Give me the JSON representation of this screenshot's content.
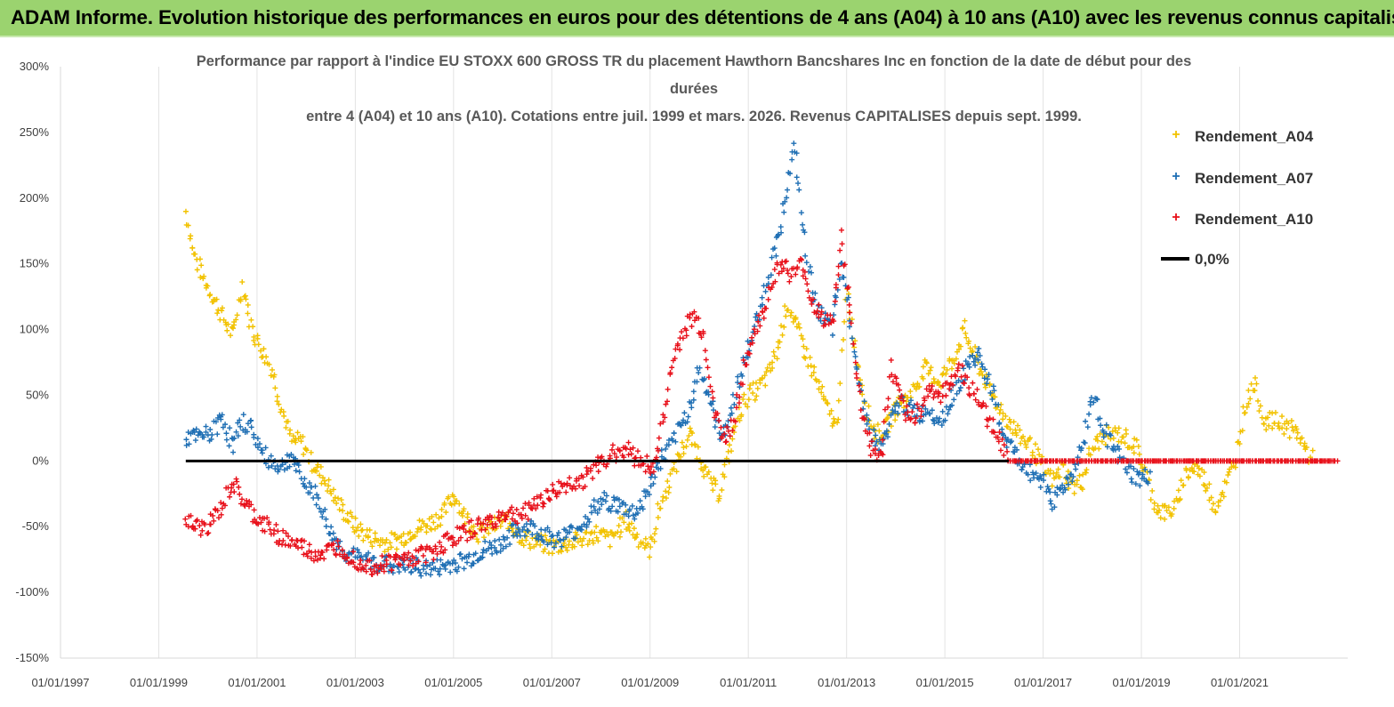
{
  "header": {
    "title": "ADAM Informe. Evolution historique des performances en euros pour des détentions de 4 ans (A04) à 10 ans (A10) avec les revenus connus capitalisés"
  },
  "chart_data": {
    "type": "scatter",
    "title_lines": [
      "Performance par rapport à l'indice EU STOXX 600 GROSS TR  du placement Hawthorn Bancshares Inc en fonction de la date de début pour des",
      "durées",
      "entre 4 (A04) et 10 ans (A10). Cotations entre juil. 1999 et mars. 2026. Revenus CAPITALISES depuis sept. 1999."
    ],
    "x_ticks": [
      "01/01/1997",
      "01/01/1999",
      "01/01/2001",
      "01/01/2003",
      "01/01/2005",
      "01/01/2007",
      "01/01/2009",
      "01/01/2011",
      "01/01/2013",
      "01/01/2015",
      "01/01/2017",
      "01/01/2019",
      "01/01/2021"
    ],
    "xlim": [
      1997.0,
      2023.2
    ],
    "y_ticks": [
      "300%",
      "250%",
      "200%",
      "150%",
      "100%",
      "50%",
      "0%",
      "-50%",
      "-100%",
      "-150%"
    ],
    "ylim": [
      -150,
      300
    ],
    "grid": "vertical",
    "legend_position": "top-right",
    "legend": [
      {
        "label": "Rendement_A04",
        "color": "#f2c200",
        "marker": "+"
      },
      {
        "label": "Rendement_A07",
        "color": "#1f6fb4",
        "marker": "+"
      },
      {
        "label": "Rendement_A10",
        "color": "#e8101a",
        "marker": "+"
      },
      {
        "label": "0,0%",
        "color": "#000000",
        "marker": "line"
      }
    ],
    "series": [
      {
        "name": "Rendement_A04",
        "color": "#f2c200",
        "points": [
          [
            1999.55,
            190
          ],
          [
            1999.7,
            160
          ],
          [
            1999.9,
            140
          ],
          [
            2000.1,
            125
          ],
          [
            2000.3,
            110
          ],
          [
            2000.5,
            95
          ],
          [
            2000.7,
            135
          ],
          [
            2000.9,
            100
          ],
          [
            2001.1,
            85
          ],
          [
            2001.3,
            70
          ],
          [
            2001.5,
            40
          ],
          [
            2001.7,
            15
          ],
          [
            2001.9,
            15
          ],
          [
            2002.1,
            0
          ],
          [
            2002.4,
            -15
          ],
          [
            2002.7,
            -35
          ],
          [
            2003.0,
            -50
          ],
          [
            2003.3,
            -58
          ],
          [
            2003.6,
            -62
          ],
          [
            2003.9,
            -60
          ],
          [
            2004.2,
            -52
          ],
          [
            2004.5,
            -48
          ],
          [
            2004.8,
            -40
          ],
          [
            2005.0,
            -25
          ],
          [
            2005.2,
            -40
          ],
          [
            2005.5,
            -55
          ],
          [
            2005.8,
            -50
          ],
          [
            2006.1,
            -45
          ],
          [
            2006.4,
            -58
          ],
          [
            2006.7,
            -62
          ],
          [
            2007.0,
            -65
          ],
          [
            2007.3,
            -63
          ],
          [
            2007.6,
            -60
          ],
          [
            2007.9,
            -55
          ],
          [
            2008.2,
            -60
          ],
          [
            2008.5,
            -45
          ],
          [
            2008.8,
            -60
          ],
          [
            2009.0,
            -68
          ],
          [
            2009.2,
            -35
          ],
          [
            2009.4,
            -15
          ],
          [
            2009.6,
            5
          ],
          [
            2009.8,
            20
          ],
          [
            2010.0,
            5
          ],
          [
            2010.2,
            -15
          ],
          [
            2010.4,
            -25
          ],
          [
            2010.6,
            5
          ],
          [
            2010.8,
            35
          ],
          [
            2011.0,
            50
          ],
          [
            2011.2,
            55
          ],
          [
            2011.4,
            65
          ],
          [
            2011.6,
            85
          ],
          [
            2011.8,
            120
          ],
          [
            2012.0,
            100
          ],
          [
            2012.2,
            80
          ],
          [
            2012.4,
            60
          ],
          [
            2012.6,
            40
          ],
          [
            2012.8,
            25
          ],
          [
            2013.0,
            130
          ],
          [
            2013.2,
            80
          ],
          [
            2013.4,
            40
          ],
          [
            2013.6,
            20
          ],
          [
            2013.8,
            25
          ],
          [
            2014.0,
            40
          ],
          [
            2014.3,
            50
          ],
          [
            2014.6,
            70
          ],
          [
            2014.9,
            60
          ],
          [
            2015.2,
            80
          ],
          [
            2015.4,
            100
          ],
          [
            2015.6,
            80
          ],
          [
            2015.9,
            55
          ],
          [
            2016.2,
            35
          ],
          [
            2016.5,
            20
          ],
          [
            2016.8,
            10
          ],
          [
            2017.0,
            -5
          ],
          [
            2017.2,
            -15
          ],
          [
            2017.4,
            -5
          ],
          [
            2017.6,
            -20
          ],
          [
            2017.8,
            -15
          ],
          [
            2018.0,
            10
          ],
          [
            2018.3,
            20
          ],
          [
            2018.6,
            20
          ],
          [
            2018.9,
            10
          ],
          [
            2019.1,
            -10
          ],
          [
            2019.3,
            -35
          ],
          [
            2019.5,
            -40
          ],
          [
            2019.7,
            -35
          ],
          [
            2019.9,
            -10
          ],
          [
            2020.1,
            -5
          ],
          [
            2020.3,
            -15
          ],
          [
            2020.5,
            -35
          ],
          [
            2020.7,
            -20
          ],
          [
            2020.9,
            0
          ],
          [
            2021.1,
            40
          ],
          [
            2021.3,
            60
          ],
          [
            2021.5,
            30
          ],
          [
            2021.8,
            30
          ],
          [
            2022.0,
            25
          ],
          [
            2022.2,
            20
          ],
          [
            2022.4,
            5
          ],
          [
            2022.5,
            0
          ]
        ]
      },
      {
        "name": "Rendement_A07",
        "color": "#1f6fb4",
        "points": [
          [
            1999.55,
            18
          ],
          [
            1999.8,
            18
          ],
          [
            2000.1,
            22
          ],
          [
            2000.3,
            35
          ],
          [
            2000.5,
            10
          ],
          [
            2000.7,
            30
          ],
          [
            2000.9,
            25
          ],
          [
            2001.1,
            5
          ],
          [
            2001.3,
            0
          ],
          [
            2001.5,
            -5
          ],
          [
            2001.7,
            5
          ],
          [
            2001.9,
            -15
          ],
          [
            2002.1,
            -20
          ],
          [
            2002.3,
            -35
          ],
          [
            2002.5,
            -55
          ],
          [
            2002.8,
            -70
          ],
          [
            2003.1,
            -75
          ],
          [
            2003.4,
            -77
          ],
          [
            2003.8,
            -80
          ],
          [
            2004.2,
            -80
          ],
          [
            2004.6,
            -82
          ],
          [
            2005.0,
            -78
          ],
          [
            2005.3,
            -75
          ],
          [
            2005.6,
            -68
          ],
          [
            2005.9,
            -65
          ],
          [
            2006.2,
            -55
          ],
          [
            2006.5,
            -50
          ],
          [
            2006.8,
            -55
          ],
          [
            2007.1,
            -60
          ],
          [
            2007.4,
            -55
          ],
          [
            2007.7,
            -45
          ],
          [
            2007.9,
            -35
          ],
          [
            2008.1,
            -30
          ],
          [
            2008.4,
            -35
          ],
          [
            2008.7,
            -40
          ],
          [
            2009.0,
            -20
          ],
          [
            2009.2,
            0
          ],
          [
            2009.4,
            10
          ],
          [
            2009.6,
            25
          ],
          [
            2009.8,
            40
          ],
          [
            2010.0,
            70
          ],
          [
            2010.2,
            50
          ],
          [
            2010.4,
            20
          ],
          [
            2010.6,
            30
          ],
          [
            2010.8,
            60
          ],
          [
            2011.0,
            85
          ],
          [
            2011.2,
            110
          ],
          [
            2011.4,
            140
          ],
          [
            2011.6,
            170
          ],
          [
            2011.8,
            210
          ],
          [
            2011.95,
            240
          ],
          [
            2012.1,
            180
          ],
          [
            2012.3,
            130
          ],
          [
            2012.5,
            110
          ],
          [
            2012.7,
            100
          ],
          [
            2012.9,
            150
          ],
          [
            2013.1,
            100
          ],
          [
            2013.3,
            50
          ],
          [
            2013.5,
            20
          ],
          [
            2013.7,
            10
          ],
          [
            2013.9,
            30
          ],
          [
            2014.1,
            45
          ],
          [
            2014.3,
            40
          ],
          [
            2014.5,
            35
          ],
          [
            2014.7,
            40
          ],
          [
            2014.9,
            30
          ],
          [
            2015.1,
            45
          ],
          [
            2015.3,
            60
          ],
          [
            2015.5,
            75
          ],
          [
            2015.7,
            80
          ],
          [
            2015.9,
            60
          ],
          [
            2016.2,
            20
          ],
          [
            2016.5,
            0
          ],
          [
            2016.8,
            -10
          ],
          [
            2017.0,
            -15
          ],
          [
            2017.2,
            -30
          ],
          [
            2017.4,
            -20
          ],
          [
            2017.6,
            -10
          ],
          [
            2017.8,
            10
          ],
          [
            2018.0,
            50
          ],
          [
            2018.2,
            30
          ],
          [
            2018.4,
            10
          ],
          [
            2018.6,
            0
          ],
          [
            2018.8,
            -10
          ],
          [
            2019.0,
            -15
          ],
          [
            2019.2,
            -10
          ]
        ]
      },
      {
        "name": "Rendement_A10",
        "color": "#e8101a",
        "points": [
          [
            1999.55,
            -45
          ],
          [
            1999.7,
            -50
          ],
          [
            1999.9,
            -52
          ],
          [
            2000.1,
            -45
          ],
          [
            2000.3,
            -35
          ],
          [
            2000.5,
            -15
          ],
          [
            2000.7,
            -30
          ],
          [
            2000.9,
            -40
          ],
          [
            2001.1,
            -48
          ],
          [
            2001.3,
            -52
          ],
          [
            2001.5,
            -58
          ],
          [
            2001.7,
            -62
          ],
          [
            2001.9,
            -65
          ],
          [
            2002.1,
            -70
          ],
          [
            2002.4,
            -70
          ],
          [
            2002.7,
            -65
          ],
          [
            2003.0,
            -75
          ],
          [
            2003.3,
            -80
          ],
          [
            2003.6,
            -78
          ],
          [
            2004.0,
            -75
          ],
          [
            2004.3,
            -72
          ],
          [
            2004.6,
            -68
          ],
          [
            2004.9,
            -60
          ],
          [
            2005.2,
            -55
          ],
          [
            2005.5,
            -50
          ],
          [
            2005.8,
            -45
          ],
          [
            2006.1,
            -40
          ],
          [
            2006.4,
            -42
          ],
          [
            2006.7,
            -30
          ],
          [
            2007.0,
            -25
          ],
          [
            2007.3,
            -18
          ],
          [
            2007.6,
            -15
          ],
          [
            2007.9,
            -5
          ],
          [
            2008.2,
            5
          ],
          [
            2008.5,
            10
          ],
          [
            2008.8,
            0
          ],
          [
            2009.1,
            -5
          ],
          [
            2009.3,
            40
          ],
          [
            2009.5,
            80
          ],
          [
            2009.7,
            100
          ],
          [
            2009.9,
            110
          ],
          [
            2010.1,
            95
          ],
          [
            2010.3,
            40
          ],
          [
            2010.5,
            15
          ],
          [
            2010.7,
            30
          ],
          [
            2010.9,
            70
          ],
          [
            2011.1,
            95
          ],
          [
            2011.3,
            110
          ],
          [
            2011.5,
            140
          ],
          [
            2011.7,
            150
          ],
          [
            2011.9,
            140
          ],
          [
            2012.1,
            150
          ],
          [
            2012.3,
            120
          ],
          [
            2012.5,
            110
          ],
          [
            2012.7,
            105
          ],
          [
            2012.9,
            170
          ],
          [
            2013.1,
            100
          ],
          [
            2013.3,
            40
          ],
          [
            2013.5,
            10
          ],
          [
            2013.7,
            0
          ],
          [
            2013.9,
            70
          ],
          [
            2014.1,
            45
          ],
          [
            2014.3,
            30
          ],
          [
            2014.5,
            40
          ],
          [
            2014.7,
            55
          ],
          [
            2014.9,
            50
          ],
          [
            2015.1,
            60
          ],
          [
            2015.3,
            70
          ],
          [
            2015.5,
            55
          ],
          [
            2015.7,
            45
          ],
          [
            2015.9,
            30
          ],
          [
            2016.1,
            20
          ],
          [
            2016.3,
            0
          ],
          [
            2016.6,
            0
          ],
          [
            2017.0,
            0
          ],
          [
            2017.5,
            0
          ],
          [
            2018.0,
            0
          ],
          [
            2018.5,
            0
          ],
          [
            2019.0,
            0
          ],
          [
            2019.5,
            0
          ],
          [
            2020.0,
            0
          ],
          [
            2020.5,
            0
          ],
          [
            2021.0,
            0
          ],
          [
            2021.5,
            0
          ],
          [
            2022.0,
            0
          ],
          [
            2022.5,
            0
          ],
          [
            2023.0,
            0
          ]
        ]
      }
    ],
    "zero_line": {
      "from": 1999.55,
      "to": 2023.2,
      "value": 0
    }
  }
}
